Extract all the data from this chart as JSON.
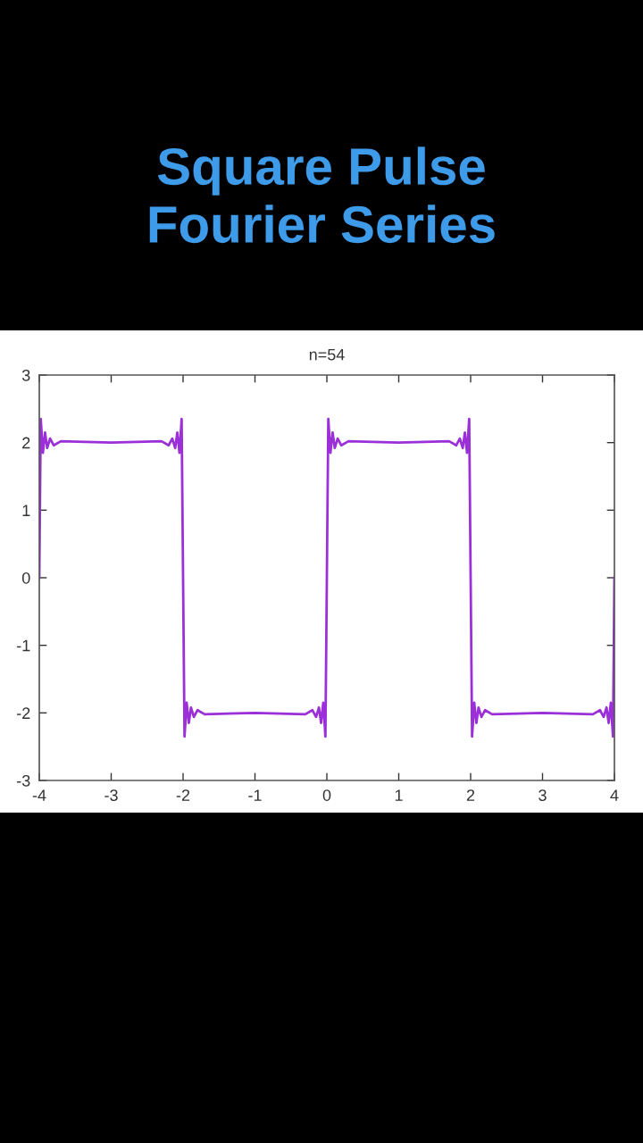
{
  "chart_data": {
    "type": "line",
    "title": "Square Pulse\nFourier Series",
    "subtitle": "n=54",
    "x": [
      -4,
      -3.98,
      -3.95,
      -3.92,
      -3.89,
      -3.85,
      -3.8,
      -3.7,
      -3.0,
      -2.3,
      -2.2,
      -2.15,
      -2.11,
      -2.08,
      -2.05,
      -2.02,
      -2.0,
      -1.98,
      -1.95,
      -1.92,
      -1.89,
      -1.85,
      -1.8,
      -1.7,
      -1.0,
      -0.3,
      -0.2,
      -0.15,
      -0.11,
      -0.08,
      -0.05,
      -0.02,
      0.0,
      0.02,
      0.05,
      0.08,
      0.11,
      0.15,
      0.2,
      0.3,
      1.0,
      1.7,
      1.8,
      1.85,
      1.89,
      1.92,
      1.95,
      1.98,
      2.0,
      2.02,
      2.05,
      2.08,
      2.11,
      2.15,
      2.2,
      2.3,
      3.0,
      3.7,
      3.8,
      3.85,
      3.89,
      3.92,
      3.95,
      3.98,
      4.0
    ],
    "series": [
      {
        "color": "#9b30d9",
        "values": [
          0,
          2.35,
          1.85,
          2.15,
          1.92,
          2.06,
          1.96,
          2.02,
          2.0,
          2.02,
          1.96,
          2.06,
          1.92,
          2.15,
          1.85,
          2.35,
          0,
          -2.35,
          -1.85,
          -2.15,
          -1.92,
          -2.06,
          -1.96,
          -2.02,
          -2.0,
          -2.02,
          -1.96,
          -2.06,
          -1.92,
          -2.15,
          -1.85,
          -2.35,
          0,
          2.35,
          1.85,
          2.15,
          1.92,
          2.06,
          1.96,
          2.02,
          2.0,
          2.02,
          1.96,
          2.06,
          1.92,
          2.15,
          1.85,
          2.35,
          0,
          -2.35,
          -1.85,
          -2.15,
          -1.92,
          -2.06,
          -1.96,
          -2.02,
          -2.0,
          -2.02,
          -1.96,
          -2.06,
          -1.92,
          -2.15,
          -1.85,
          -2.35,
          0
        ]
      }
    ],
    "xlim": [
      -4,
      4
    ],
    "ylim": [
      -3,
      3
    ],
    "xticks": [
      -4,
      -3,
      -2,
      -1,
      0,
      1,
      2,
      3,
      4
    ],
    "yticks": [
      -3,
      -2,
      -1,
      0,
      1,
      2,
      3
    ],
    "grid": false,
    "legend": false,
    "marker": "none",
    "line_style": "solid"
  }
}
